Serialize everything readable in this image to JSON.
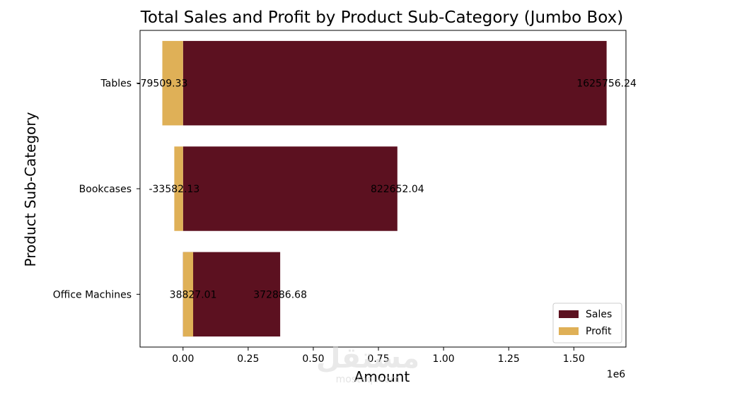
{
  "chart_data": {
    "type": "bar",
    "orientation": "horizontal",
    "stacked": "overlay",
    "title": "Total Sales and Profit by Product Sub-Category (Jumbo Box)",
    "xlabel": "Amount",
    "ylabel": "Product Sub-Category",
    "x_offset_label": "1e6",
    "x_scale": 1000000,
    "xlim": [
      -165000,
      1700000
    ],
    "x_ticks": [
      0,
      0.25,
      0.5,
      0.75,
      1.0,
      1.25,
      1.5
    ],
    "x_tick_labels": [
      "0.00",
      "0.25",
      "0.50",
      "0.75",
      "1.00",
      "1.25",
      "1.50"
    ],
    "categories": [
      "Tables",
      "Bookcases",
      "Office Machines"
    ],
    "series": [
      {
        "name": "Sales",
        "color": "#5c1120",
        "values": [
          1625756.24,
          822652.04,
          372886.68
        ],
        "labels": [
          "1625756.24",
          "822652.04",
          "372886.68"
        ]
      },
      {
        "name": "Profit",
        "color": "#dfb057",
        "values": [
          -79509.33,
          -33582.13,
          38827.01
        ],
        "labels": [
          "-79509.33",
          "-33582.13",
          "38827.01"
        ]
      }
    ],
    "legend_position": "lower-right",
    "grid": false
  },
  "watermark": {
    "text": "مستقل",
    "subtext": "mostaql.com"
  }
}
